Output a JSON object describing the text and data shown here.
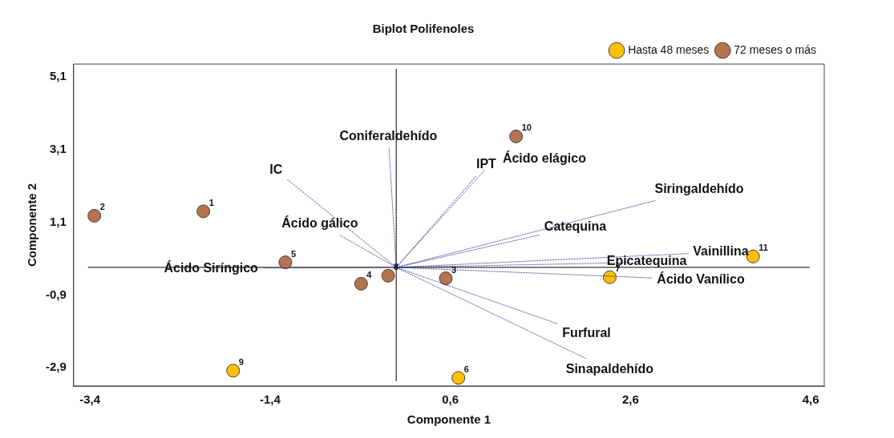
{
  "chart_data": {
    "type": "scatter",
    "title": "Biplot Polifenoles",
    "xlabel": "Componente 1",
    "ylabel": "Componente 2",
    "xlim": [
      -3.58,
      4.75
    ],
    "ylim": [
      -3.4,
      5.45
    ],
    "xticks": [
      {
        "value": -3.4,
        "label": "-3,4"
      },
      {
        "value": -1.4,
        "label": "-1,4"
      },
      {
        "value": 0.6,
        "label": "0,6"
      },
      {
        "value": 2.6,
        "label": "2,6"
      },
      {
        "value": 4.6,
        "label": "4,6"
      }
    ],
    "yticks": [
      {
        "value": -2.9,
        "label": "-2,9"
      },
      {
        "value": -0.9,
        "label": "-0,9"
      },
      {
        "value": 1.1,
        "label": "1,1"
      },
      {
        "value": 3.1,
        "label": "3,1"
      },
      {
        "value": 5.1,
        "label": "5,1"
      }
    ],
    "legend": "top right",
    "ref_lines": [
      {
        "axis": "x",
        "value": 0,
        "color": "#000000"
      },
      {
        "axis": "y",
        "value": -0.14,
        "color": "#000000"
      }
    ],
    "series": [
      {
        "type": "line",
        "color": "#1a1a80",
        "line_style": "dotted",
        "marker": "none",
        "x": [
          0,
          -1.21,
          null,
          0,
          -0.08,
          null,
          0,
          0.89,
          null,
          0,
          0.98,
          null,
          0,
          -0.63,
          null,
          0,
          -1.48,
          null,
          0,
          2.88,
          null,
          0,
          1.59,
          null,
          0,
          3.24,
          null,
          0,
          2.58,
          null,
          0,
          2.84,
          null,
          0,
          1.79,
          null,
          0,
          2.11
        ],
        "values": [
          -0.14,
          2.28,
          null,
          -0.14,
          3.14,
          null,
          -0.14,
          2.38,
          null,
          -0.14,
          2.53,
          null,
          -0.14,
          0.75,
          null,
          -0.14,
          -0.16,
          null,
          -0.14,
          1.7,
          null,
          -0.14,
          0.75,
          null,
          -0.14,
          0.24,
          null,
          -0.14,
          -0.01,
          null,
          -0.14,
          -0.43,
          null,
          -0.14,
          -1.69,
          null,
          -0.14,
          -2.65
        ]
      },
      {
        "name": "Hasta 48 meses",
        "color": "#ffc000",
        "marker": "circle",
        "x": [
          -1.81,
          0.69,
          2.37,
          3.96
        ],
        "values": [
          -2.98,
          -3.18,
          -0.41,
          0.16
        ]
      },
      {
        "name": "72 meses o más",
        "color": "#b5734f",
        "marker": "circle",
        "x": [
          -3.35,
          -2.14,
          -1.23,
          -0.39,
          -0.09,
          1.33,
          0.55
        ],
        "values": [
          1.28,
          1.4,
          0,
          -0.59,
          -0.37,
          3.46,
          -0.44
        ]
      }
    ],
    "annotations": [
      {
        "text": "IC",
        "x": -1.21,
        "y": 2.28
      },
      {
        "text": "Coniferaldehído",
        "x": -0.08,
        "y": 3.14
      },
      {
        "text": "IPT",
        "x": 0.89,
        "y": 2.38
      },
      {
        "text": "Ácido elágico",
        "x": 0.98,
        "y": 2.53
      },
      {
        "text": "Ácido gálico",
        "x": -0.63,
        "y": 0.75
      },
      {
        "text": "Ácido Siríngico",
        "x": -1.48,
        "y": -0.16
      },
      {
        "text": "Siringaldehído",
        "x": 2.88,
        "y": 1.7
      },
      {
        "text": "Catequina",
        "x": 1.59,
        "y": 0.75
      },
      {
        "text": "Vainillina",
        "x": 3.24,
        "y": 0.24
      },
      {
        "text": "Epicatequina",
        "x": 2.58,
        "y": -0.01
      },
      {
        "text": "Ácido Vanílico",
        "x": 2.84,
        "y": -0.43
      },
      {
        "text": "Furfural",
        "x": 1.79,
        "y": -1.69
      },
      {
        "text": "Sinapaldehído",
        "x": 2.11,
        "y": -2.65
      },
      {
        "text": "9",
        "x": -1.81,
        "y": -2.98
      },
      {
        "text": "6",
        "x": 0.69,
        "y": -3.18
      },
      {
        "text": "7",
        "x": 2.37,
        "y": -0.41
      },
      {
        "text": "11",
        "x": 3.96,
        "y": 0.16
      },
      {
        "text": "2",
        "x": -3.35,
        "y": 1.28
      },
      {
        "text": "1",
        "x": -2.14,
        "y": 1.4
      },
      {
        "text": "5",
        "x": -1.23,
        "y": 0
      },
      {
        "text": "4",
        "x": -0.39,
        "y": -0.59
      },
      {
        "text": "8",
        "x": -0.09,
        "y": -0.37
      },
      {
        "text": "10",
        "x": 1.33,
        "y": 3.46
      },
      {
        "text": "3",
        "x": 0.55,
        "y": -0.44
      }
    ]
  }
}
